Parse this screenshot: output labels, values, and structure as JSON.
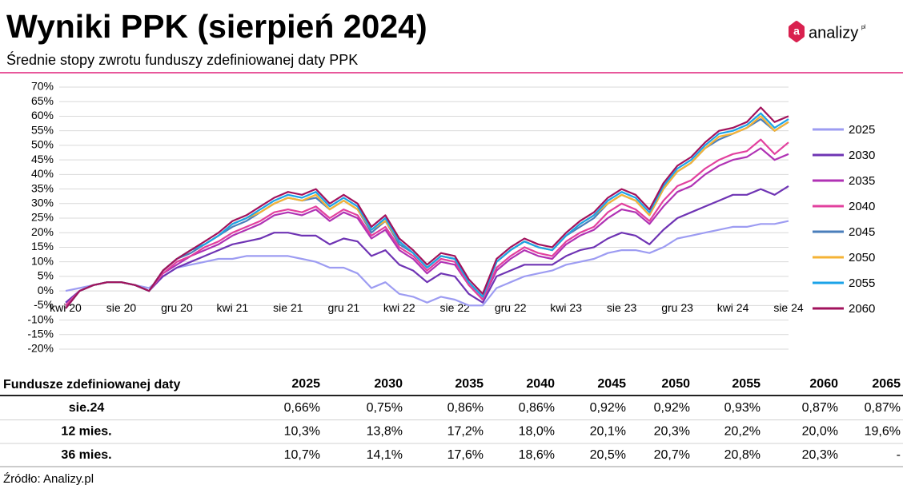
{
  "chart_data": {
    "type": "line",
    "title": "Wyniki PPK (sierpień 2024)",
    "subtitle": "Średnie stopy zwrotu funduszy zdefiniowanej daty PPK",
    "categories": [
      "kwi 20",
      null,
      null,
      null,
      "sie 20",
      null,
      null,
      null,
      "gru 20",
      null,
      null,
      null,
      "kwi 21",
      null,
      null,
      null,
      "sie 21",
      null,
      null,
      null,
      "gru 21",
      null,
      null,
      null,
      "kwi 22",
      null,
      null,
      null,
      "sie 22",
      null,
      null,
      null,
      "gru 22",
      null,
      null,
      null,
      "kwi 23",
      null,
      null,
      null,
      "sie 23",
      null,
      null,
      null,
      "gru 23",
      null,
      null,
      null,
      "kwi 24",
      null,
      null,
      null,
      "sie 24"
    ],
    "series": [
      {
        "name": "2025",
        "color": "#9d9cf2",
        "values": [
          0,
          1,
          2,
          3,
          3,
          2,
          1,
          5,
          8,
          9,
          10,
          11,
          11,
          12,
          12,
          12,
          12,
          11,
          10,
          8,
          8,
          6,
          1,
          3,
          -1,
          -2,
          -4,
          -2,
          -3,
          -5,
          -5,
          1,
          3,
          5,
          6,
          7,
          9,
          10,
          11,
          13,
          14,
          14,
          13,
          15,
          18,
          19,
          20,
          21,
          22,
          22,
          23,
          23,
          24
        ]
      },
      {
        "name": "2030",
        "color": "#6f34b4",
        "values": [
          -4,
          0,
          2,
          3,
          3,
          2,
          0,
          5,
          8,
          10,
          12,
          14,
          16,
          17,
          18,
          20,
          20,
          19,
          19,
          16,
          18,
          17,
          12,
          14,
          9,
          7,
          3,
          6,
          5,
          -1,
          -4,
          5,
          7,
          9,
          9,
          9,
          12,
          14,
          15,
          18,
          20,
          19,
          16,
          21,
          25,
          27,
          29,
          31,
          33,
          33,
          35,
          33,
          36
        ]
      },
      {
        "name": "2035",
        "color": "#b032b4",
        "values": [
          -5,
          0,
          2,
          3,
          3,
          2,
          0,
          6,
          9,
          12,
          14,
          16,
          19,
          21,
          23,
          26,
          27,
          26,
          28,
          24,
          27,
          25,
          18,
          21,
          14,
          11,
          6,
          10,
          9,
          2,
          -3,
          7,
          11,
          14,
          12,
          11,
          16,
          19,
          21,
          25,
          28,
          27,
          23,
          29,
          34,
          36,
          40,
          43,
          45,
          46,
          49,
          45,
          47
        ]
      },
      {
        "name": "2040",
        "color": "#e2409e",
        "values": [
          -5,
          0,
          2,
          3,
          3,
          2,
          0,
          6,
          10,
          12,
          15,
          17,
          20,
          22,
          24,
          27,
          28,
          27,
          29,
          25,
          28,
          26,
          19,
          22,
          15,
          12,
          7,
          11,
          10,
          2,
          -3,
          8,
          12,
          15,
          13,
          12,
          17,
          20,
          22,
          27,
          30,
          28,
          24,
          31,
          36,
          38,
          42,
          45,
          47,
          48,
          52,
          47,
          51
        ]
      },
      {
        "name": "2045",
        "color": "#4a7ebb",
        "values": [
          -6,
          0,
          2,
          3,
          3,
          2,
          0,
          7,
          11,
          13,
          16,
          19,
          22,
          24,
          27,
          30,
          32,
          31,
          32,
          28,
          31,
          28,
          20,
          24,
          16,
          13,
          8,
          12,
          11,
          3,
          -2,
          10,
          14,
          17,
          15,
          14,
          19,
          22,
          25,
          30,
          33,
          31,
          26,
          35,
          41,
          44,
          49,
          52,
          54,
          56,
          59,
          55,
          58
        ]
      },
      {
        "name": "2050",
        "color": "#f5b335",
        "values": [
          -6,
          0,
          2,
          3,
          3,
          2,
          0,
          7,
          11,
          14,
          16,
          19,
          23,
          25,
          27,
          30,
          32,
          31,
          33,
          28,
          31,
          28,
          21,
          24,
          17,
          13,
          8,
          12,
          11,
          3,
          -2,
          10,
          14,
          17,
          15,
          14,
          19,
          23,
          26,
          30,
          33,
          31,
          26,
          35,
          41,
          44,
          49,
          53,
          54,
          56,
          60,
          55,
          58
        ]
      },
      {
        "name": "2055",
        "color": "#1ba3e8",
        "values": [
          -6,
          0,
          2,
          3,
          3,
          2,
          0,
          7,
          11,
          14,
          16,
          19,
          23,
          25,
          28,
          31,
          33,
          32,
          34,
          29,
          32,
          29,
          21,
          25,
          17,
          13,
          8,
          12,
          11,
          3,
          -2,
          10,
          14,
          17,
          15,
          14,
          19,
          23,
          26,
          31,
          34,
          32,
          27,
          36,
          42,
          45,
          50,
          54,
          55,
          57,
          61,
          56,
          59
        ]
      },
      {
        "name": "2060",
        "color": "#a2125c",
        "values": [
          -6,
          0,
          2,
          3,
          3,
          2,
          0,
          7,
          11,
          14,
          17,
          20,
          24,
          26,
          29,
          32,
          34,
          33,
          35,
          30,
          33,
          30,
          22,
          26,
          18,
          14,
          9,
          13,
          12,
          4,
          -1,
          11,
          15,
          18,
          16,
          15,
          20,
          24,
          27,
          32,
          35,
          33,
          28,
          37,
          43,
          46,
          51,
          55,
          56,
          58,
          63,
          58,
          60
        ]
      }
    ],
    "ylim": [
      -20,
      70
    ],
    "yticks": [
      {
        "value": -20,
        "label": "-20%"
      },
      {
        "value": -15,
        "label": "-15%"
      },
      {
        "value": -10,
        "label": "-10%"
      },
      {
        "value": -5,
        "label": "-5%"
      },
      {
        "value": 0,
        "label": "0%"
      },
      {
        "value": 5,
        "label": "5%"
      },
      {
        "value": 10,
        "label": "10%"
      },
      {
        "value": 15,
        "label": "15%"
      },
      {
        "value": 20,
        "label": "20%"
      },
      {
        "value": 25,
        "label": "25%"
      },
      {
        "value": 30,
        "label": "30%"
      },
      {
        "value": 35,
        "label": "35%"
      },
      {
        "value": 40,
        "label": "40%"
      },
      {
        "value": 45,
        "label": "45%"
      },
      {
        "value": 50,
        "label": "50%"
      },
      {
        "value": 55,
        "label": "55%"
      },
      {
        "value": 60,
        "label": "60%"
      },
      {
        "value": 65,
        "label": "65%"
      },
      {
        "value": 70,
        "label": "70%"
      }
    ],
    "grid": true,
    "legend": "right"
  },
  "logo": {
    "text": "analizy",
    "suffix": "pl"
  },
  "table": {
    "header": "Fundusze zdefiniowanej daty",
    "columns": [
      "2025",
      "2030",
      "2035",
      "2040",
      "2045",
      "2050",
      "2055",
      "2060",
      "2065"
    ],
    "rows": [
      [
        "sie.24",
        "0,66%",
        "0,75%",
        "0,86%",
        "0,86%",
        "0,92%",
        "0,92%",
        "0,93%",
        "0,87%",
        "0,87%"
      ],
      [
        "12 mies.",
        "10,3%",
        "13,8%",
        "17,2%",
        "18,0%",
        "20,1%",
        "20,3%",
        "20,2%",
        "20,0%",
        "19,6%"
      ],
      [
        "36 mies.",
        "10,7%",
        "14,1%",
        "17,6%",
        "18,6%",
        "20,5%",
        "20,7%",
        "20,8%",
        "20,3%",
        "-"
      ]
    ]
  },
  "source": "Źródło: Analizy.pl"
}
